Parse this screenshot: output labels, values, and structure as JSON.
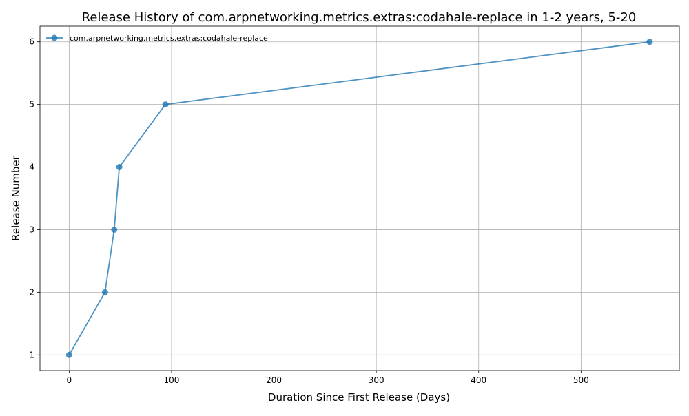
{
  "chart_data": {
    "type": "line",
    "title": "Release History of com.arpnetworking.metrics.extras:codahale-replace in 1-2 years, 5-20",
    "xlabel": "Duration Since First Release (Days)",
    "ylabel": "Release Number",
    "xlim": [
      -28.5,
      596
    ],
    "ylim": [
      0.75,
      6.25
    ],
    "x_ticks": [
      0,
      100,
      200,
      300,
      400,
      500
    ],
    "y_ticks": [
      1,
      2,
      3,
      4,
      5,
      6
    ],
    "grid": true,
    "legend_position": "top-left",
    "series": [
      {
        "name": "com.arpnetworking.metrics.extras:codahale-replace",
        "color": "#1f77b4",
        "marker": "circle",
        "x": [
          0,
          35,
          44,
          49,
          94,
          567
        ],
        "y": [
          1,
          2,
          3,
          4,
          5,
          6
        ]
      }
    ]
  }
}
